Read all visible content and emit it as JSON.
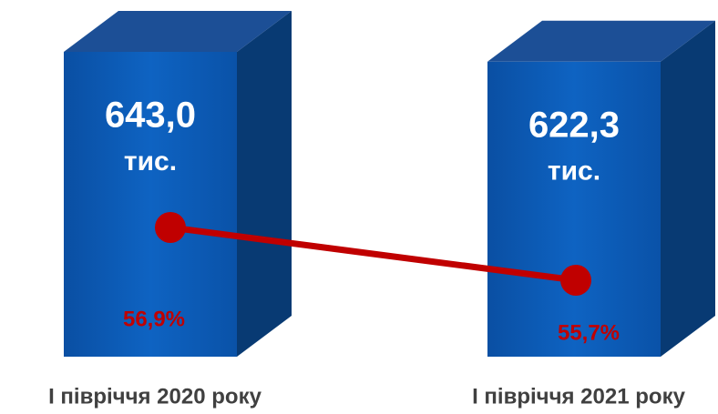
{
  "chart_data": {
    "type": "bar3d",
    "categories": [
      "І півріччя 2020 року",
      "І півріччя 2021 року"
    ],
    "values": [
      643.0,
      622.3
    ],
    "value_labels": [
      "643,0",
      "622,3"
    ],
    "unit": "тис.",
    "color": "#0b5cb5",
    "line": {
      "values": [
        56.9,
        55.7
      ],
      "value_labels": [
        "56,9%",
        "55,7%"
      ],
      "color": "#c00000"
    }
  }
}
